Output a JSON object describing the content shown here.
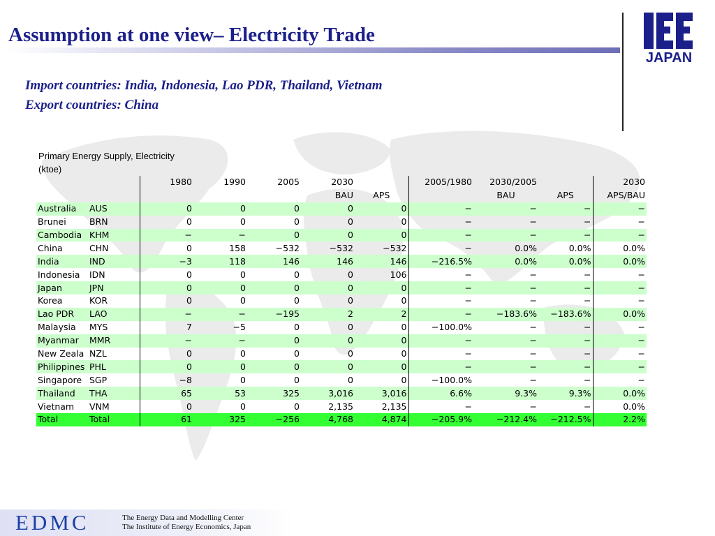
{
  "slide": {
    "title": "Assumption at one view– Electricity Trade",
    "import_line": "Import countries: India, Indonesia, Lao PDR, Thailand, Vietnam",
    "export_line": "Export countries: China"
  },
  "logo": {
    "text_top": "IEE",
    "text_bottom": "JAPAN"
  },
  "table": {
    "heading": "Primary Energy Supply, Electricity",
    "unit": "(ktoe)",
    "header_row1": [
      "1980",
      "1990",
      "2005",
      "2030",
      "2005/1980",
      "2030/2005",
      "2030"
    ],
    "header_row2": [
      "BAU",
      "APS",
      "BAU",
      "APS",
      "APS/BAU"
    ],
    "rows": [
      {
        "name": "Australia",
        "code": "AUS",
        "vals": [
          "0",
          "0",
          "0",
          "0",
          "0",
          "−",
          "−",
          "−",
          "−"
        ]
      },
      {
        "name": "Brunei",
        "code": "BRN",
        "vals": [
          "0",
          "0",
          "0",
          "0",
          "0",
          "−",
          "−",
          "−",
          "−"
        ]
      },
      {
        "name": "Cambodia",
        "code": "KHM",
        "vals": [
          "−",
          "−",
          "0",
          "0",
          "0",
          "−",
          "−",
          "−",
          "−"
        ]
      },
      {
        "name": "China",
        "code": "CHN",
        "vals": [
          "0",
          "158",
          "−532",
          "−532",
          "−532",
          "−",
          "0.0%",
          "0.0%",
          "0.0%"
        ]
      },
      {
        "name": "India",
        "code": "IND",
        "vals": [
          "−3",
          "118",
          "146",
          "146",
          "146",
          "−216.5%",
          "0.0%",
          "0.0%",
          "0.0%"
        ]
      },
      {
        "name": "Indonesia",
        "code": "IDN",
        "vals": [
          "0",
          "0",
          "0",
          "0",
          "106",
          "−",
          "−",
          "−",
          "−"
        ]
      },
      {
        "name": "Japan",
        "code": "JPN",
        "vals": [
          "0",
          "0",
          "0",
          "0",
          "0",
          "−",
          "−",
          "−",
          "−"
        ]
      },
      {
        "name": "Korea",
        "code": "KOR",
        "vals": [
          "0",
          "0",
          "0",
          "0",
          "0",
          "−",
          "−",
          "−",
          "−"
        ]
      },
      {
        "name": "Lao PDR",
        "code": "LAO",
        "vals": [
          "−",
          "−",
          "−195",
          "2",
          "2",
          "−",
          "−183.6%",
          "−183.6%",
          "0.0%"
        ]
      },
      {
        "name": "Malaysia",
        "code": "MYS",
        "vals": [
          "7",
          "−5",
          "0",
          "0",
          "0",
          "−100.0%",
          "−",
          "−",
          "−"
        ]
      },
      {
        "name": "Myanmar",
        "code": "MMR",
        "vals": [
          "−",
          "−",
          "0",
          "0",
          "0",
          "−",
          "−",
          "−",
          "−"
        ]
      },
      {
        "name": "New Zeala",
        "code": "NZL",
        "vals": [
          "0",
          "0",
          "0",
          "0",
          "0",
          "−",
          "−",
          "−",
          "−"
        ]
      },
      {
        "name": "Philippines",
        "code": "PHL",
        "vals": [
          "0",
          "0",
          "0",
          "0",
          "0",
          "−",
          "−",
          "−",
          "−"
        ]
      },
      {
        "name": "Singapore",
        "code": "SGP",
        "vals": [
          "−8",
          "0",
          "0",
          "0",
          "0",
          "−100.0%",
          "−",
          "−",
          "−"
        ]
      },
      {
        "name": "Thailand",
        "code": "THA",
        "vals": [
          "65",
          "53",
          "325",
          "3,016",
          "3,016",
          "6.6%",
          "9.3%",
          "9.3%",
          "0.0%"
        ]
      },
      {
        "name": "Vietnam",
        "code": "VNM",
        "vals": [
          "0",
          "0",
          "0",
          "2,135",
          "2,135",
          "−",
          "−",
          "−",
          "0.0%"
        ]
      }
    ],
    "total": {
      "name": "Total",
      "code": "Total",
      "vals": [
        "61",
        "325",
        "−256",
        "4,768",
        "4,874",
        "−205.9%",
        "−212.4%",
        "−212.5%",
        "2.2%"
      ]
    }
  },
  "footer": {
    "brand": "EDMC",
    "line1": "The Energy Data and Modelling Center",
    "line2": "The Institute of Energy Economics, Japan"
  },
  "colors": {
    "title": "#1b1f8a",
    "row_green": "#ccffcc",
    "total_green": "#33ff33",
    "brand_blue": "#1b3fa8"
  }
}
